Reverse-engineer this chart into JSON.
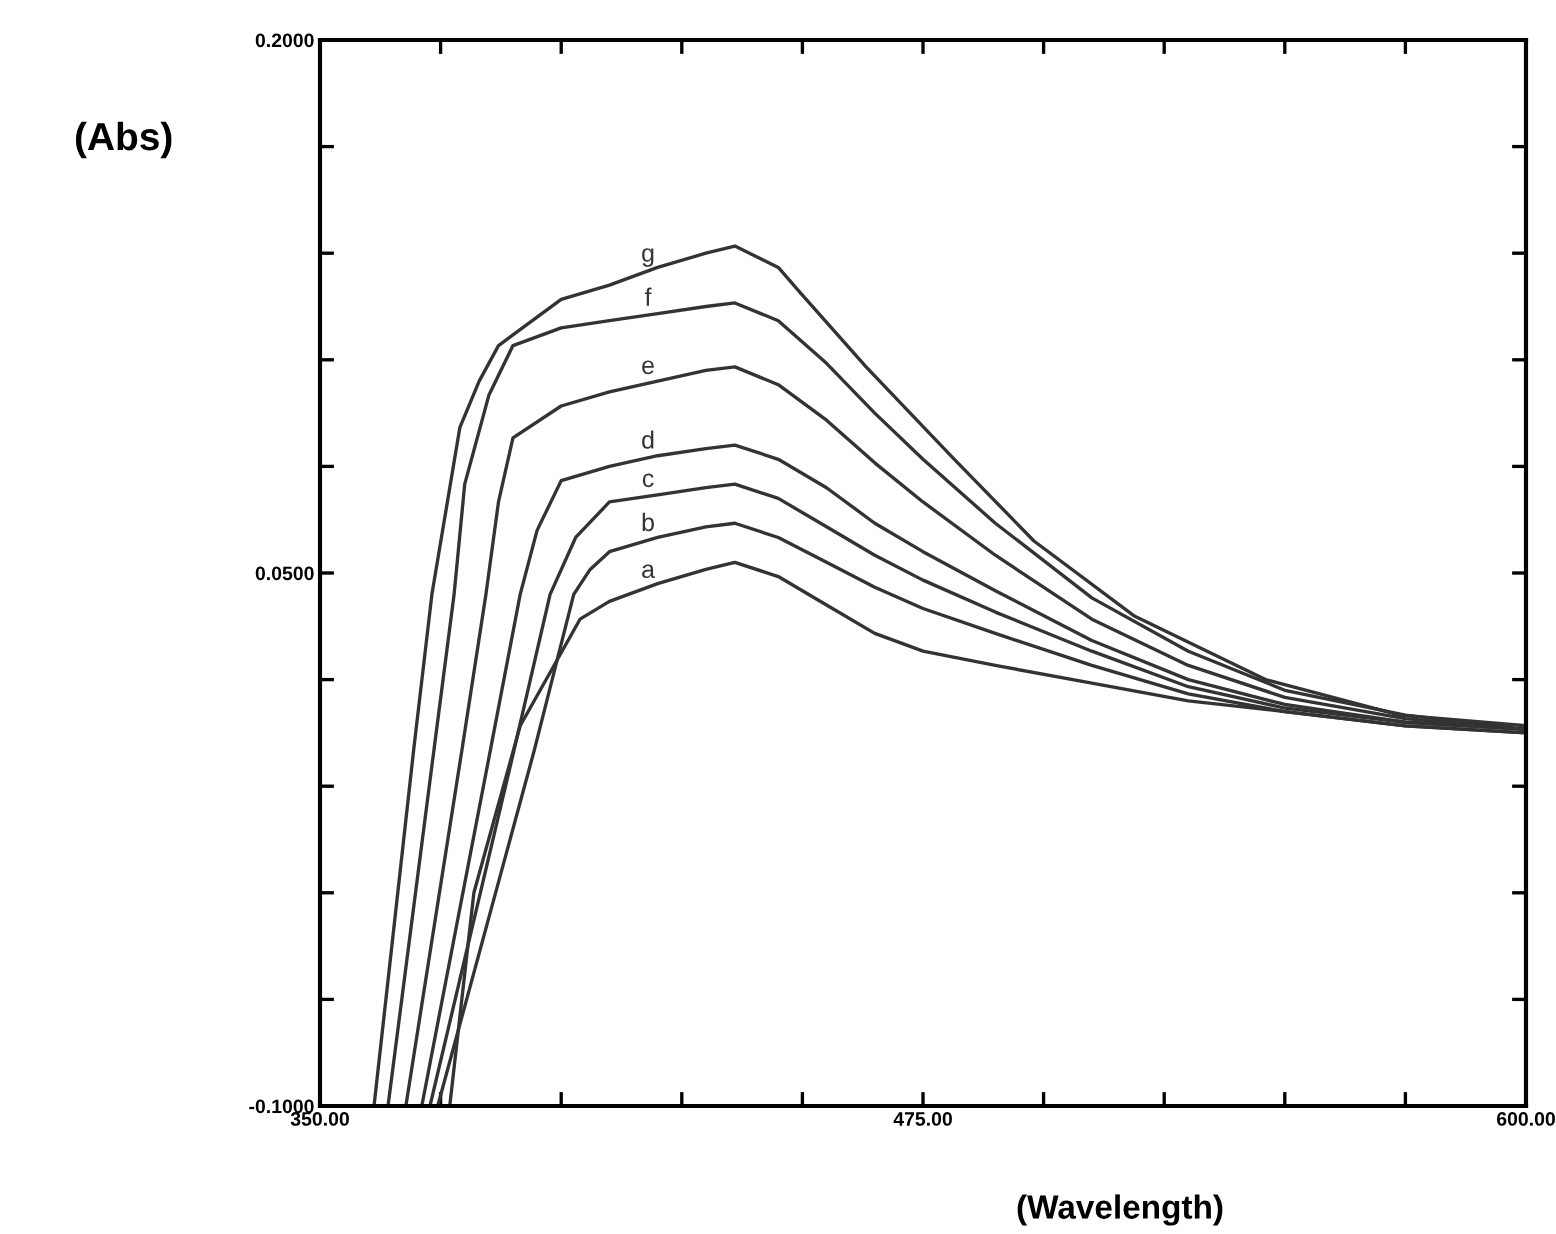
{
  "chart_data": {
    "type": "line",
    "xlabel": "(Wavelength)",
    "ylabel": "(Abs)",
    "xlim": [
      350,
      600
    ],
    "ylim": [
      -0.1,
      0.2
    ],
    "xticks": [
      {
        "value": 350,
        "label": "350.00"
      },
      {
        "value": 375,
        "label": null
      },
      {
        "value": 400,
        "label": null
      },
      {
        "value": 425,
        "label": null
      },
      {
        "value": 450,
        "label": null
      },
      {
        "value": 475,
        "label": "475.00"
      },
      {
        "value": 500,
        "label": null
      },
      {
        "value": 525,
        "label": null
      },
      {
        "value": 550,
        "label": null
      },
      {
        "value": 575,
        "label": null
      },
      {
        "value": 600,
        "label": "600.00"
      }
    ],
    "yticks": [
      {
        "value": -0.1,
        "label": "-0.1000"
      },
      {
        "value": -0.07,
        "label": null
      },
      {
        "value": -0.04,
        "label": null
      },
      {
        "value": -0.01,
        "label": null
      },
      {
        "value": 0.02,
        "label": null
      },
      {
        "value": 0.05,
        "label": "0.0500"
      },
      {
        "value": 0.08,
        "label": null
      },
      {
        "value": 0.11,
        "label": null
      },
      {
        "value": 0.14,
        "label": null
      },
      {
        "value": 0.17,
        "label": null
      },
      {
        "value": 0.2,
        "label": "0.2000"
      }
    ],
    "grid": false,
    "legend": false,
    "marker": "none",
    "line_style": "solid",
    "series": [
      {
        "name": "g",
        "color": "#333333",
        "x": [
          361.2,
          369.4,
          373.2,
          379,
          383,
          387,
          390,
          400,
          410,
          420,
          430,
          436,
          445,
          449.5,
          463.2,
          481.5,
          498,
          518.7,
          546,
          573.9,
          600
        ],
        "values": [
          -0.1,
          0.0,
          0.044,
          0.091,
          0.104,
          0.114,
          0.117,
          0.127,
          0.131,
          0.136,
          0.14,
          0.142,
          0.136,
          0.129,
          0.108,
          0.082,
          0.059,
          0.038,
          0.02,
          0.01,
          0.007
        ]
      },
      {
        "name": "f",
        "color": "#333333",
        "x": [
          364.1,
          373.6,
          377.8,
          380,
          385,
          390,
          400,
          410,
          420,
          430,
          436,
          445,
          455,
          465,
          475,
          490,
          510,
          530,
          550,
          575,
          600
        ],
        "values": [
          -0.1,
          0.0,
          0.044,
          0.075,
          0.1,
          0.114,
          0.119,
          0.121,
          0.123,
          0.125,
          0.126,
          0.121,
          0.109,
          0.095,
          0.082,
          0.064,
          0.043,
          0.028,
          0.017,
          0.01,
          0.006
        ]
      },
      {
        "name": "e",
        "color": "#333333",
        "x": [
          367.8,
          379.4,
          384.4,
          387,
          390,
          400,
          410,
          420,
          430,
          436,
          445,
          455,
          465,
          475,
          490,
          510,
          530,
          550,
          575,
          600
        ],
        "values": [
          -0.1,
          0.0,
          0.044,
          0.07,
          0.088,
          0.097,
          0.101,
          0.104,
          0.107,
          0.108,
          0.103,
          0.093,
          0.081,
          0.07,
          0.055,
          0.037,
          0.024,
          0.015,
          0.009,
          0.006
        ]
      },
      {
        "name": "d",
        "color": "#333333",
        "x": [
          371.1,
          385.3,
          391.5,
          395,
          400,
          410,
          420,
          430,
          436,
          445,
          455,
          465,
          475,
          490,
          510,
          530,
          550,
          575,
          600
        ],
        "values": [
          -0.1,
          0.0,
          0.044,
          0.062,
          0.076,
          0.08,
          0.083,
          0.085,
          0.086,
          0.082,
          0.074,
          0.064,
          0.056,
          0.045,
          0.031,
          0.02,
          0.013,
          0.008,
          0.006
        ]
      },
      {
        "name": "c",
        "color": "#333333",
        "x": [
          372.8,
          390.2,
          397.7,
          403,
          410,
          420,
          430,
          436,
          445,
          455,
          465,
          475,
          490,
          510,
          530,
          550,
          575,
          600
        ],
        "values": [
          -0.1,
          0.0,
          0.044,
          0.06,
          0.07,
          0.072,
          0.074,
          0.075,
          0.071,
          0.063,
          0.055,
          0.048,
          0.039,
          0.028,
          0.018,
          0.012,
          0.008,
          0.006
        ]
      },
      {
        "name": "b",
        "color": "#333333",
        "x": [
          374.4,
          394.4,
          402.6,
          406,
          410,
          420,
          430,
          436,
          445,
          455,
          465,
          475,
          490,
          510,
          530,
          550,
          575,
          600
        ],
        "values": [
          -0.1,
          0.0,
          0.044,
          0.051,
          0.056,
          0.06,
          0.063,
          0.064,
          0.06,
          0.053,
          0.046,
          0.04,
          0.033,
          0.024,
          0.016,
          0.011,
          0.007,
          0.005
        ]
      },
      {
        "name": "a",
        "color": "#333333",
        "x": [
          376.9,
          381.9,
          391.5,
          403.9,
          410,
          420,
          430,
          436,
          445,
          455,
          465,
          475,
          490,
          510,
          530,
          550,
          575,
          600
        ],
        "values": [
          -0.1,
          -0.04,
          0.007,
          0.037,
          0.042,
          0.047,
          0.051,
          0.053,
          0.049,
          0.041,
          0.033,
          0.028,
          0.024,
          0.019,
          0.014,
          0.011,
          0.007,
          0.005
        ]
      }
    ]
  }
}
